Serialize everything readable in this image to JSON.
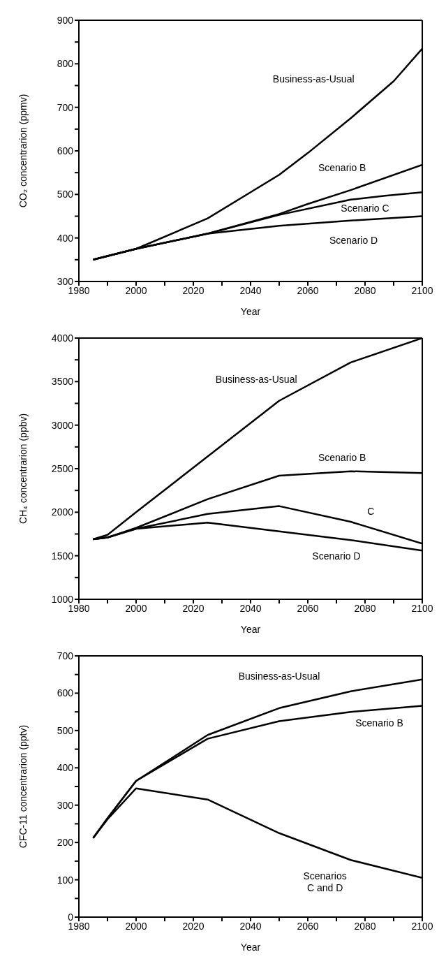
{
  "chart_data": [
    {
      "type": "line",
      "xlabel": "Year",
      "ylabel": "CO₂ concentrarion (ppmv)",
      "xlim": [
        1980,
        2100
      ],
      "xticks": [
        1980,
        {
          "value": 1990,
          "label": null
        },
        2000,
        {
          "value": 2010,
          "label": null
        },
        2020,
        {
          "value": 2030,
          "label": null
        },
        2040,
        {
          "value": 2050,
          "label": null
        },
        2060,
        {
          "value": 2070,
          "label": null
        },
        2080,
        {
          "value": 2090,
          "label": null
        },
        2100
      ],
      "ylim": [
        300,
        900
      ],
      "yticks": [
        300,
        {
          "value": 350,
          "label": null
        },
        400,
        {
          "value": 450,
          "label": null
        },
        500,
        {
          "value": 550,
          "label": null
        },
        600,
        {
          "value": 650,
          "label": null
        },
        700,
        {
          "value": 750,
          "label": null
        },
        800,
        {
          "value": 850,
          "label": null
        },
        900
      ],
      "series": [
        {
          "name": "Business-as-Usual",
          "color": "#000000",
          "x": [
            1985,
            2000,
            2025,
            2040,
            2050,
            2060,
            2075,
            2090,
            2100
          ],
          "values": [
            350,
            375,
            445,
            505,
            545,
            595,
            675,
            760,
            835
          ]
        },
        {
          "name": "Scenario B",
          "color": "#000000",
          "x": [
            1985,
            2000,
            2025,
            2050,
            2060,
            2075,
            2100
          ],
          "values": [
            350,
            375,
            410,
            455,
            478,
            510,
            568
          ]
        },
        {
          "name": "Scenario C",
          "color": "#000000",
          "x": [
            1985,
            2000,
            2025,
            2050,
            2075,
            2087,
            2100
          ],
          "values": [
            350,
            375,
            410,
            453,
            488,
            497,
            505
          ]
        },
        {
          "name": "Scenario D",
          "color": "#000000",
          "x": [
            1985,
            2000,
            2025,
            2050,
            2075,
            2100
          ],
          "values": [
            350,
            375,
            410,
            428,
            440,
            450
          ]
        }
      ]
    },
    {
      "type": "line",
      "xlabel": "Year",
      "ylabel": "CH₄ concentrarion (ppbv)",
      "xlim": [
        1980,
        2100
      ],
      "xticks": [
        1980,
        {
          "value": 1990,
          "label": null
        },
        2000,
        {
          "value": 2010,
          "label": null
        },
        2020,
        {
          "value": 2030,
          "label": null
        },
        2040,
        {
          "value": 2050,
          "label": null
        },
        2060,
        {
          "value": 2070,
          "label": null
        },
        2080,
        {
          "value": 2090,
          "label": null
        },
        2100
      ],
      "ylim": [
        1000,
        4000
      ],
      "yticks": [
        1000,
        {
          "value": 1250,
          "label": null
        },
        1500,
        {
          "value": 1750,
          "label": null
        },
        2000,
        {
          "value": 2250,
          "label": null
        },
        2500,
        {
          "value": 2750,
          "label": null
        },
        3000,
        {
          "value": 3250,
          "label": null
        },
        3500,
        {
          "value": 3750,
          "label": null
        },
        4000
      ],
      "series": [
        {
          "name": "Business-as-Usual",
          "color": "#000000",
          "x": [
            1985,
            1990,
            2000,
            2025,
            2050,
            2075,
            2100
          ],
          "values": [
            1690,
            1740,
            2000,
            2640,
            3280,
            3720,
            4000
          ]
        },
        {
          "name": "Scenario B",
          "color": "#000000",
          "x": [
            1985,
            1990,
            2000,
            2025,
            2050,
            2075,
            2100
          ],
          "values": [
            1690,
            1710,
            1820,
            2150,
            2420,
            2470,
            2450
          ]
        },
        {
          "name": "C",
          "color": "#000000",
          "x": [
            1985,
            1990,
            2000,
            2025,
            2050,
            2075,
            2100
          ],
          "values": [
            1690,
            1710,
            1810,
            1980,
            2070,
            1890,
            1640
          ]
        },
        {
          "name": "Scenario D",
          "color": "#000000",
          "x": [
            1985,
            1990,
            2000,
            2025,
            2050,
            2075,
            2100
          ],
          "values": [
            1690,
            1710,
            1810,
            1880,
            1780,
            1680,
            1560
          ]
        }
      ]
    },
    {
      "type": "line",
      "xlabel": "Year",
      "ylabel": "CFC-11 concentrarion (pptv)",
      "xlim": [
        1980,
        2100
      ],
      "xticks": [
        1980,
        {
          "value": 1990,
          "label": null
        },
        2000,
        {
          "value": 2010,
          "label": null
        },
        2020,
        {
          "value": 2030,
          "label": null
        },
        2040,
        {
          "value": 2050,
          "label": null
        },
        2060,
        {
          "value": 2070,
          "label": null
        },
        2080,
        {
          "value": 2090,
          "label": null
        },
        2100
      ],
      "ylim": [
        0,
        700
      ],
      "yticks": [
        0,
        {
          "value": 50,
          "label": null
        },
        100,
        {
          "value": 150,
          "label": null
        },
        200,
        {
          "value": 250,
          "label": null
        },
        300,
        {
          "value": 350,
          "label": null
        },
        400,
        {
          "value": 450,
          "label": null
        },
        500,
        {
          "value": 550,
          "label": null
        },
        600,
        {
          "value": 650,
          "label": null
        },
        700
      ],
      "series": [
        {
          "name": "Business-as-Usual",
          "color": "#000000",
          "x": [
            1985,
            1990,
            2000,
            2025,
            2050,
            2075,
            2100
          ],
          "values": [
            212,
            265,
            365,
            488,
            560,
            605,
            637
          ]
        },
        {
          "name": "Scenario B",
          "color": "#000000",
          "x": [
            1985,
            1990,
            2000,
            2025,
            2050,
            2075,
            2100
          ],
          "values": [
            212,
            265,
            365,
            478,
            525,
            550,
            566
          ]
        },
        {
          "name": "Scenarios C and D",
          "color": "#000000",
          "x": [
            1985,
            1990,
            2000,
            2025,
            2050,
            2075,
            2100
          ],
          "values": [
            212,
            262,
            345,
            315,
            225,
            153,
            105
          ]
        }
      ]
    }
  ]
}
